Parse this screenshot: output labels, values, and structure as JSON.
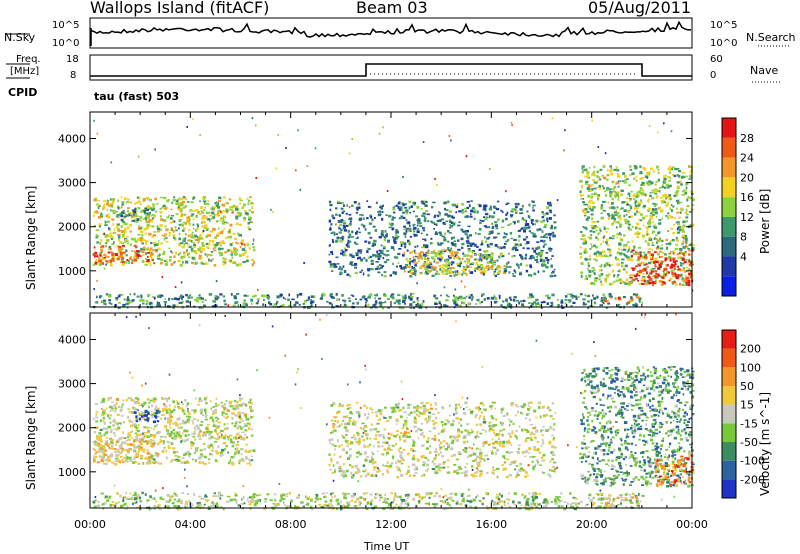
{
  "header": {
    "station": "Wallops Island (fitACF)",
    "beam": "Beam 03",
    "date": "05/Aug/2011"
  },
  "noise_panel": {
    "left_label": "N.Sky",
    "left_ticks": [
      "10^5",
      "10^0"
    ],
    "right_label": "N.Search",
    "right_ticks": [
      "10^5",
      "10^0"
    ]
  },
  "freq_panel": {
    "left_label_1": "Freq.",
    "left_label_2": "[MHz]",
    "left_ticks": [
      "18",
      "8"
    ],
    "right_label": "Nave",
    "right_ticks": [
      "60",
      "0"
    ],
    "cpid_label": "CPID",
    "cpid_value": "tau (fast) 503"
  },
  "colors": {
    "power_scale": [
      "#0a1fe6",
      "#1e3aa8",
      "#2a6a7c",
      "#3c9a6a",
      "#8cd23c",
      "#f2d21e",
      "#f5962a",
      "#f05a14",
      "#e61414"
    ],
    "velocity_scale": [
      "#1e32c8",
      "#2a64a0",
      "#3c8c64",
      "#78c83c",
      "#c8c8bc",
      "#f0c83c",
      "#f59628",
      "#f05a14",
      "#e61e14"
    ]
  },
  "chart_data": [
    {
      "type": "heatmap",
      "panel": "power",
      "xlabel": "Time UT",
      "ylabel": "Slant Range [km]",
      "xlim": [
        0,
        24
      ],
      "ylim": [
        180,
        4600
      ],
      "yticks": [
        "1000",
        "2000",
        "3000",
        "4000"
      ],
      "xticks": [
        "00:00",
        "04:00",
        "08:00",
        "12:00",
        "16:00",
        "20:00",
        "00:00"
      ],
      "colorbar_label": "Power [dB]",
      "colorbar_ticks": [
        "28",
        "24",
        "20",
        "16",
        "12",
        "8",
        "4"
      ],
      "regions": [
        {
          "t0": 0.1,
          "t1": 6.5,
          "r0": 1150,
          "r1": 2700,
          "level": 0.55
        },
        {
          "t0": 0.1,
          "t1": 2.5,
          "r0": 1200,
          "r1": 1600,
          "level": 0.85
        },
        {
          "t0": 1.0,
          "t1": 2.5,
          "r0": 2150,
          "r1": 2450,
          "level": 0.35
        },
        {
          "t0": 0.1,
          "t1": 22.0,
          "r0": 180,
          "r1": 500,
          "level": 0.35
        },
        {
          "t0": 9.5,
          "t1": 18.5,
          "r0": 900,
          "r1": 2600,
          "level": 0.3
        },
        {
          "t0": 12.5,
          "t1": 16.5,
          "r0": 950,
          "r1": 1500,
          "level": 0.6
        },
        {
          "t0": 19.5,
          "t1": 24.0,
          "r0": 700,
          "r1": 3400,
          "level": 0.5
        },
        {
          "t0": 21.5,
          "t1": 24.0,
          "r0": 700,
          "r1": 1500,
          "level": 0.9
        },
        {
          "t0": 20.5,
          "t1": 22.0,
          "r0": 300,
          "r1": 450,
          "level": 0.75
        }
      ]
    },
    {
      "type": "heatmap",
      "panel": "velocity",
      "xlabel": "Time UT",
      "ylabel": "Slant Range [km]",
      "xlim": [
        0,
        24
      ],
      "ylim": [
        180,
        4600
      ],
      "yticks": [
        "1000",
        "2000",
        "3000",
        "4000"
      ],
      "xticks": [
        "00:00",
        "04:00",
        "08:00",
        "12:00",
        "16:00",
        "20:00",
        "00:00"
      ],
      "colorbar_label": "Velocity [m s^-1]",
      "colorbar_ticks": [
        "200",
        "100",
        "50",
        "15",
        "-15",
        "-50",
        "-100",
        "-200"
      ],
      "regions": [
        {
          "t0": 0.1,
          "t1": 6.5,
          "r0": 1200,
          "r1": 2700,
          "level": 0.5
        },
        {
          "t0": 0.1,
          "t1": 2.5,
          "r0": 1200,
          "r1": 1800,
          "level": 0.6
        },
        {
          "t0": 1.7,
          "t1": 2.8,
          "r0": 2150,
          "r1": 2450,
          "level": 0.05
        },
        {
          "t0": 0.1,
          "t1": 22.0,
          "r0": 180,
          "r1": 550,
          "level": 0.45
        },
        {
          "t0": 9.5,
          "t1": 18.5,
          "r0": 900,
          "r1": 2600,
          "level": 0.5
        },
        {
          "t0": 19.5,
          "t1": 24.0,
          "r0": 700,
          "r1": 3400,
          "level": 0.3
        },
        {
          "t0": 22.5,
          "t1": 24.0,
          "r0": 700,
          "r1": 1400,
          "level": 0.75
        },
        {
          "t0": 20.5,
          "t1": 22.0,
          "r0": 300,
          "r1": 450,
          "level": 0.55
        }
      ]
    }
  ]
}
